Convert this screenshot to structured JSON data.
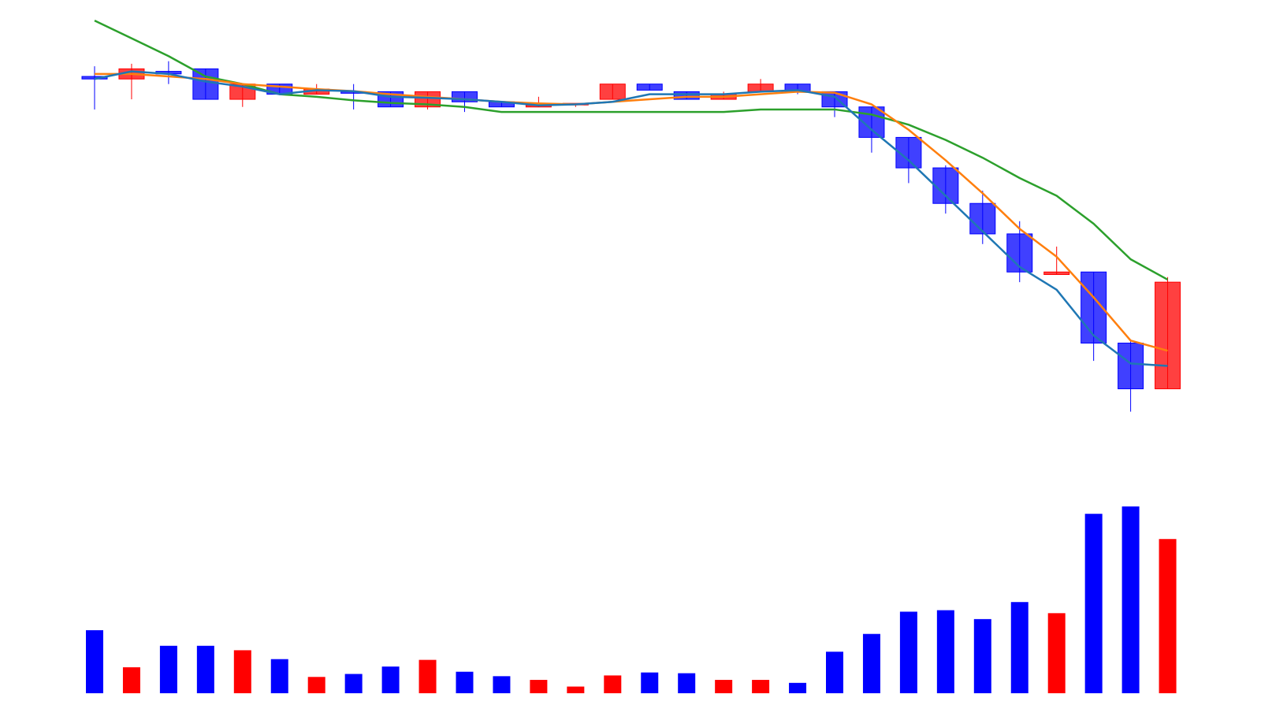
{
  "chart_data": {
    "type": "candlestick",
    "title": "",
    "xlabel": "",
    "ylabel": "",
    "grid": false,
    "axes_visible": false,
    "legend": "none",
    "price_ylim": [
      38,
      114
    ],
    "volume_ylim": [
      0,
      340
    ],
    "colors": {
      "up": "#ff0000",
      "down": "#0000ff",
      "ma_short": "#1f77b4",
      "ma_mid": "#ff7f0e",
      "ma_long": "#2ca02c"
    },
    "candles": [
      {
        "open": 100.5,
        "close": 100.0,
        "high": 102.5,
        "low": 94.0,
        "volume": 85
      },
      {
        "open": 100.0,
        "close": 102.0,
        "high": 103.0,
        "low": 96.0,
        "volume": 35
      },
      {
        "open": 101.5,
        "close": 101.0,
        "high": 103.5,
        "low": 99.0,
        "volume": 64
      },
      {
        "open": 102.0,
        "close": 96.0,
        "high": 102.0,
        "low": 96.0,
        "volume": 64
      },
      {
        "open": 96.0,
        "close": 99.0,
        "high": 99.0,
        "low": 94.5,
        "volume": 58
      },
      {
        "open": 99.0,
        "close": 97.0,
        "high": 99.0,
        "low": 97.0,
        "volume": 46
      },
      {
        "open": 97.0,
        "close": 98.0,
        "high": 99.0,
        "low": 97.0,
        "volume": 22
      },
      {
        "open": 97.5,
        "close": 97.4,
        "high": 99.0,
        "low": 94.0,
        "volume": 26
      },
      {
        "open": 97.5,
        "close": 94.5,
        "high": 97.5,
        "low": 94.5,
        "volume": 36
      },
      {
        "open": 94.5,
        "close": 97.5,
        "high": 97.5,
        "low": 94.0,
        "volume": 45
      },
      {
        "open": 97.5,
        "close": 95.5,
        "high": 97.5,
        "low": 93.5,
        "volume": 29
      },
      {
        "open": 95.5,
        "close": 94.5,
        "high": 95.5,
        "low": 94.5,
        "volume": 23
      },
      {
        "open": 94.5,
        "close": 94.8,
        "high": 96.5,
        "low": 94.5,
        "volume": 18
      },
      {
        "open": 95.0,
        "close": 95.2,
        "high": 95.2,
        "low": 94.5,
        "volume": 9
      },
      {
        "open": 96.0,
        "close": 99.0,
        "high": 99.0,
        "low": 96.0,
        "volume": 24
      },
      {
        "open": 99.0,
        "close": 97.8,
        "high": 99.0,
        "low": 97.8,
        "volume": 28
      },
      {
        "open": 97.5,
        "close": 96.0,
        "high": 97.5,
        "low": 96.0,
        "volume": 27
      },
      {
        "open": 96.0,
        "close": 97.0,
        "high": 97.5,
        "low": 96.0,
        "volume": 18
      },
      {
        "open": 97.5,
        "close": 99.0,
        "high": 100.0,
        "low": 97.5,
        "volume": 18
      },
      {
        "open": 99.0,
        "close": 97.5,
        "high": 99.0,
        "low": 97.0,
        "volume": 14
      },
      {
        "open": 97.5,
        "close": 94.5,
        "high": 97.5,
        "low": 92.5,
        "volume": 56
      },
      {
        "open": 94.5,
        "close": 88.5,
        "high": 94.5,
        "low": 85.5,
        "volume": 80
      },
      {
        "open": 88.5,
        "close": 82.5,
        "high": 88.5,
        "low": 79.5,
        "volume": 110
      },
      {
        "open": 82.5,
        "close": 75.5,
        "high": 83.0,
        "low": 73.5,
        "volume": 112
      },
      {
        "open": 75.5,
        "close": 69.5,
        "high": 78.0,
        "low": 67.5,
        "volume": 100
      },
      {
        "open": 69.5,
        "close": 62.0,
        "high": 72.0,
        "low": 60.0,
        "volume": 123
      },
      {
        "open": 61.5,
        "close": 62.0,
        "high": 67.0,
        "low": 61.5,
        "volume": 108
      },
      {
        "open": 62.0,
        "close": 48.0,
        "high": 62.0,
        "low": 44.5,
        "volume": 242
      },
      {
        "open": 48.0,
        "close": 39.0,
        "high": 48.5,
        "low": 34.5,
        "volume": 252
      },
      {
        "open": 39.0,
        "close": 60.0,
        "high": 61.0,
        "low": 39.0,
        "volume": 208
      }
    ],
    "series": [
      {
        "values": [
          100.0,
          101.5,
          101.0,
          99.5,
          98.5,
          97.0,
          97.8,
          97.6,
          96.5,
          96.3,
          96.0,
          95.5,
          94.8,
          95.0,
          95.5,
          97.0,
          97.0,
          97.0,
          97.5,
          97.8,
          96.5,
          90.0,
          84.0,
          77.0,
          70.0,
          63.0,
          58.5,
          49.5,
          44.0,
          43.5
        ]
      },
      {
        "values": [
          101.0,
          101.0,
          100.5,
          100.0,
          99.0,
          98.5,
          98.0,
          97.6,
          97.0,
          96.5,
          96.0,
          95.5,
          95.2,
          95.0,
          95.5,
          96.0,
          96.5,
          96.5,
          97.0,
          97.5,
          97.3,
          95.0,
          90.0,
          84.0,
          77.5,
          70.5,
          65.0,
          57.0,
          48.5,
          46.5
        ]
      },
      {
        "values": [
          111.5,
          108.0,
          104.5,
          100.5,
          99.0,
          97.0,
          96.5,
          95.8,
          95.3,
          95.0,
          94.5,
          93.5,
          93.5,
          93.5,
          93.5,
          93.5,
          93.5,
          93.5,
          94.0,
          94.0,
          94.0,
          93.0,
          91.0,
          88.0,
          84.5,
          80.5,
          77.0,
          71.5,
          64.5,
          60.5
        ]
      }
    ]
  }
}
